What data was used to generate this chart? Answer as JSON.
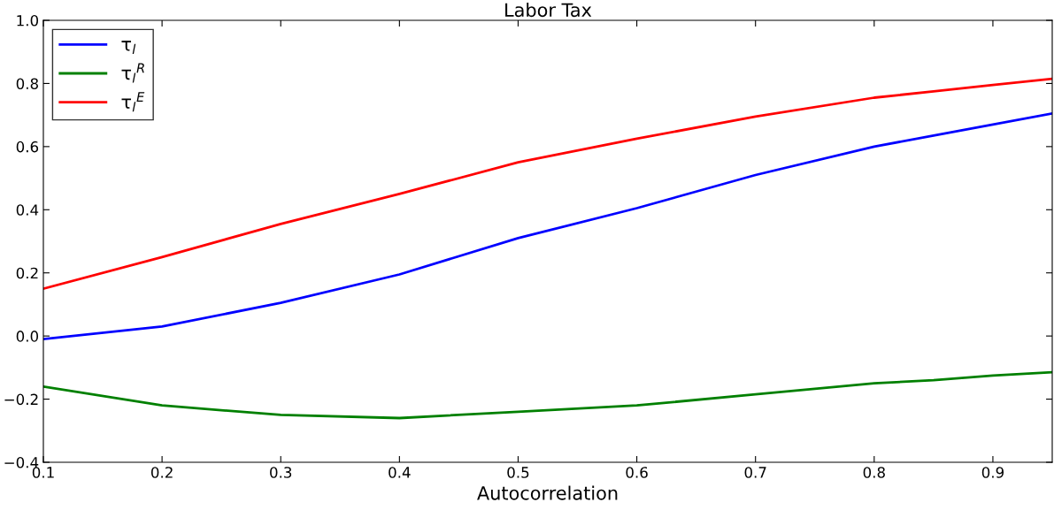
{
  "chart_data": {
    "type": "line",
    "title": "Labor Tax",
    "xlabel": "Autocorrelation",
    "x": [
      0.1,
      0.2,
      0.3,
      0.4,
      0.5,
      0.6,
      0.7,
      0.8,
      0.85,
      0.9,
      0.95
    ],
    "series": [
      {
        "name": "τ$_{l}$",
        "color": "#0000ff",
        "values": [
          -0.01,
          0.03,
          0.105,
          0.195,
          0.31,
          0.405,
          0.51,
          0.6,
          0.635,
          0.67,
          0.705
        ]
      },
      {
        "name": "τ$_{l}$$^{R}$",
        "color": "#008000",
        "values": [
          -0.16,
          -0.22,
          -0.25,
          -0.26,
          -0.24,
          -0.22,
          -0.185,
          -0.15,
          -0.14,
          -0.125,
          -0.115
        ]
      },
      {
        "name": "τ$_{l}$$^{E}$",
        "color": "#ff0000",
        "values": [
          0.15,
          0.25,
          0.355,
          0.45,
          0.55,
          0.625,
          0.695,
          0.755,
          0.775,
          0.795,
          0.815
        ]
      }
    ],
    "xlim": [
      0.1,
      0.95
    ],
    "xticks": [
      0.1,
      0.2,
      0.3,
      0.4,
      0.5,
      0.6,
      0.7,
      0.8,
      0.9
    ],
    "ylim": [
      -0.4,
      1.0
    ],
    "yticks": [
      {
        "value": -0.4,
        "label": "−0.4"
      },
      {
        "value": -0.2,
        "label": "−0.2"
      },
      {
        "value": 0,
        "label": "0.0"
      },
      0.2,
      0.4,
      0.6,
      0.8,
      {
        "value": 1,
        "label": "1.0"
      }
    ],
    "grid": false,
    "legend": "top left"
  }
}
